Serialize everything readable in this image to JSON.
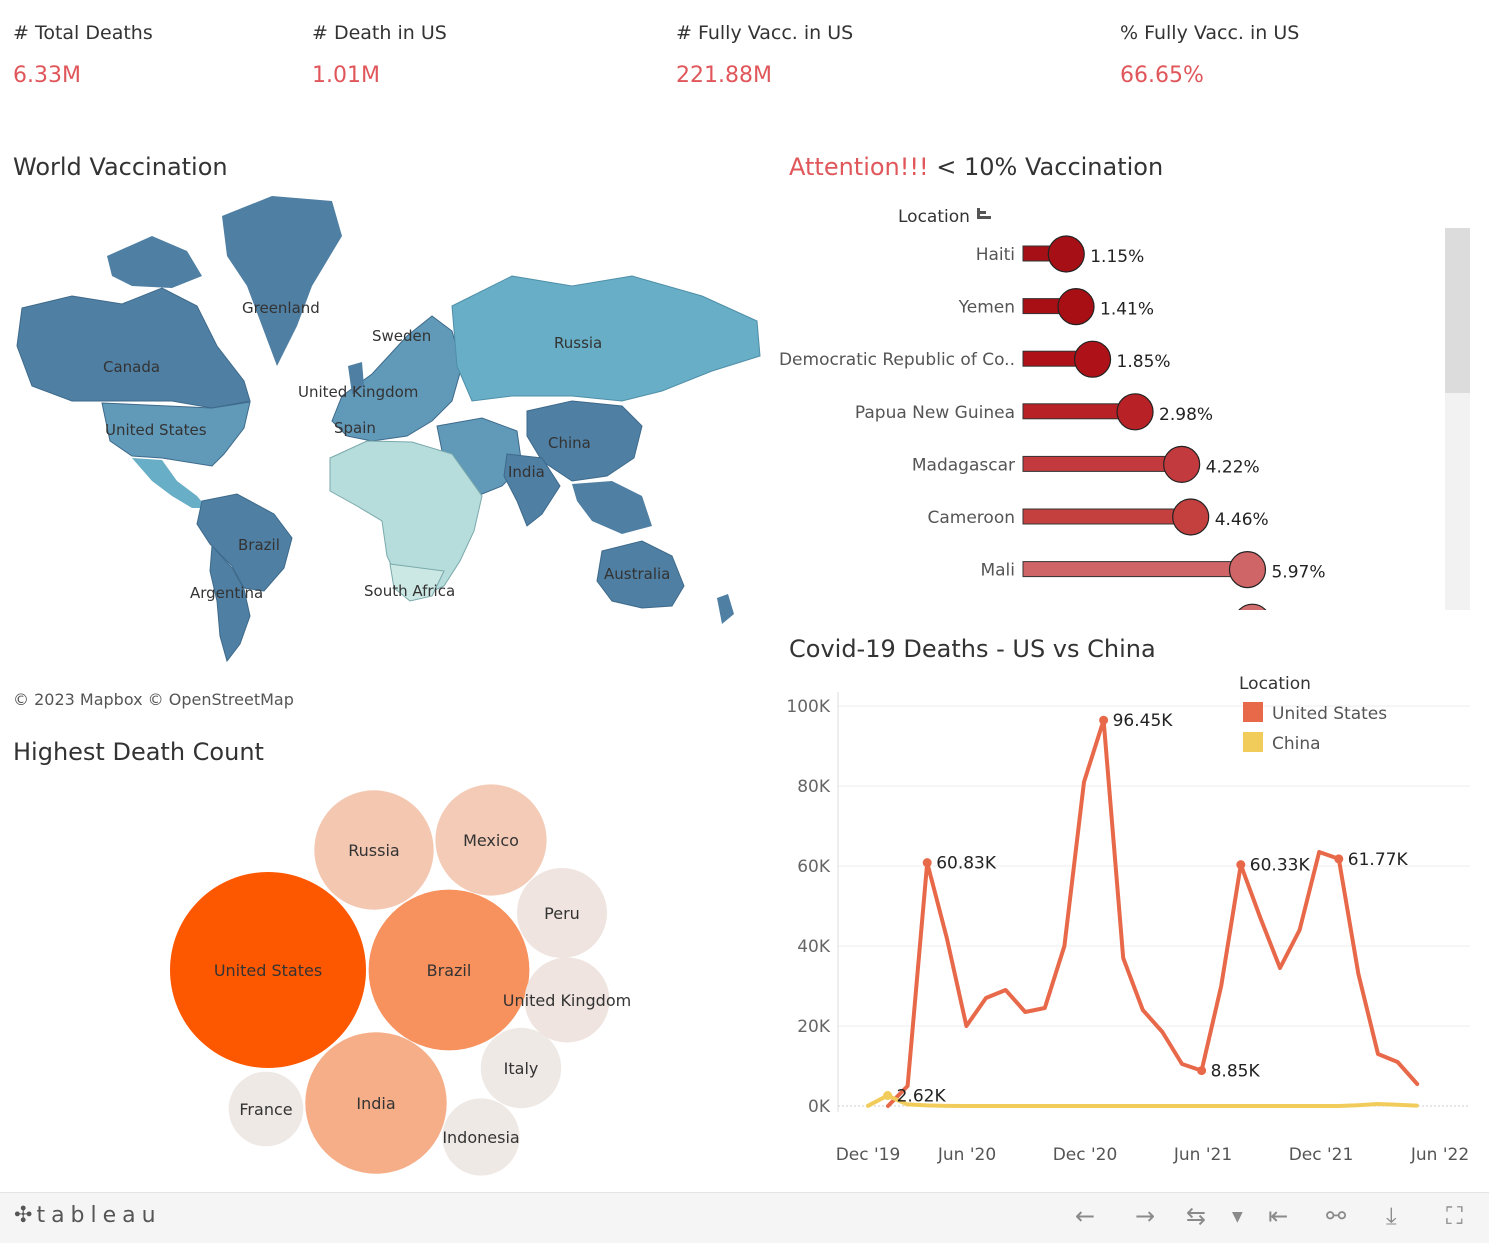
{
  "kpis": [
    {
      "label": "# Total Deaths",
      "value": "6.33M"
    },
    {
      "label": "# Death in US",
      "value": "1.01M"
    },
    {
      "label": "# Fully Vacc. in US",
      "value": "221.88M"
    },
    {
      "label": "% Fully Vacc. in US",
      "value": "66.65%"
    }
  ],
  "titles": {
    "world_vaccination": "World Vaccination",
    "attention_prefix": "Attention!!!",
    "attention_rest": " < 10% Vaccination",
    "highest_death": "Highest Death Count",
    "deaths_us_china": "Covid-19 Deaths - US vs China"
  },
  "map": {
    "credit": "© 2023 Mapbox  © OpenStreetMap",
    "labels": [
      "Greenland",
      "Canada",
      "United States",
      "Sweden",
      "United Kingdom",
      "Spain",
      "Russia",
      "China",
      "India",
      "Brazil",
      "Argentina",
      "South Africa",
      "Australia"
    ],
    "colors": {
      "dark": "#4f7fa3",
      "mid": "#6199b8",
      "light": "#67aec6",
      "pale": "#b6dcdc",
      "palest": "#cce8e4"
    }
  },
  "chart_data": [
    {
      "type": "bar",
      "style": "lollipop",
      "axis_header": "Location",
      "categories": [
        "Haiti",
        "Yemen",
        "Democratic Republic of Co..",
        "Papua New Guinea",
        "Madagascar",
        "Cameroon",
        "Mali"
      ],
      "values": [
        1.15,
        1.41,
        1.85,
        2.98,
        4.22,
        4.46,
        5.97
      ],
      "labels": [
        "1.15%",
        "1.41%",
        "1.85%",
        "2.98%",
        "4.22%",
        "4.46%",
        "5.97%"
      ],
      "partially_visible_next_value": 6.1,
      "colors": [
        "#a50f15",
        "#a80f15",
        "#ae1218",
        "#b82227",
        "#c23a3d",
        "#c4403f",
        "#d06567"
      ]
    },
    {
      "type": "line",
      "legend_title": "Location",
      "legend_position": "top-right",
      "x": [
        "2020-01",
        "2020-02",
        "2020-03",
        "2020-04",
        "2020-05",
        "2020-06",
        "2020-07",
        "2020-08",
        "2020-09",
        "2020-10",
        "2020-11",
        "2020-12",
        "2021-01",
        "2021-02",
        "2021-03",
        "2021-04",
        "2021-05",
        "2021-06",
        "2021-07",
        "2021-08",
        "2021-09",
        "2021-10",
        "2021-11",
        "2021-12",
        "2022-01",
        "2022-02",
        "2022-03",
        "2022-04",
        "2022-05",
        "2022-06"
      ],
      "x_ticks": [
        "Dec '19",
        "Jun '20",
        "Dec '20",
        "Jun '21",
        "Dec '21",
        "Jun '22"
      ],
      "y_ticks": [
        "0K",
        "20K",
        "40K",
        "60K",
        "80K",
        "100K"
      ],
      "ylim": [
        0,
        100000
      ],
      "grid": true,
      "series": [
        {
          "name": "United States",
          "color": "#e8694a",
          "values": [
            8,
            5000,
            60830,
            42000,
            20000,
            27000,
            29000,
            23500,
            24500,
            40000,
            81000,
            96450,
            37000,
            24000,
            18500,
            10500,
            8850,
            30000,
            60330,
            47000,
            34500,
            44000,
            63500,
            61770,
            33000,
            13000,
            11000,
            5500,
            null,
            null
          ]
        },
        {
          "name": "China",
          "color": "#f1cc5a",
          "values": [
            50,
            2620,
            400,
            150,
            20,
            10,
            10,
            10,
            10,
            10,
            10,
            10,
            10,
            10,
            10,
            10,
            10,
            10,
            10,
            10,
            10,
            10,
            10,
            10,
            10,
            200,
            500,
            300,
            100,
            null
          ]
        }
      ],
      "annotations": [
        {
          "label": "60.83K",
          "index": 2,
          "series": 0
        },
        {
          "label": "96.45K",
          "index": 11,
          "series": 0
        },
        {
          "label": "8.85K",
          "index": 16,
          "series": 0
        },
        {
          "label": "60.33K",
          "index": 18,
          "series": 0
        },
        {
          "label": "61.77K",
          "index": 23,
          "series": 0
        },
        {
          "label": "2.62K",
          "index": 1,
          "series": 1
        }
      ]
    },
    {
      "type": "bubble",
      "labels": [
        "United States",
        "Brazil",
        "India",
        "Russia",
        "Mexico",
        "Peru",
        "United Kingdom",
        "Italy",
        "Indonesia",
        "France"
      ],
      "values": [
        1010000,
        680000,
        525000,
        375000,
        325000,
        213000,
        190000,
        170000,
        157000,
        146000
      ],
      "colors": [
        "#fd5800",
        "#f7925e",
        "#f5ae88",
        "#f4c7b1",
        "#f3cbb6",
        "#efe4df",
        "#efe4df",
        "#efe9e6",
        "#efe9e6",
        "#efe9e6"
      ]
    }
  ],
  "footer": {
    "logo": "tableau",
    "icons": [
      "undo-icon",
      "redo-icon",
      "revert-icon",
      "dropdown-icon",
      "reset-icon",
      "share-icon",
      "download-icon",
      "fullscreen-icon"
    ]
  }
}
